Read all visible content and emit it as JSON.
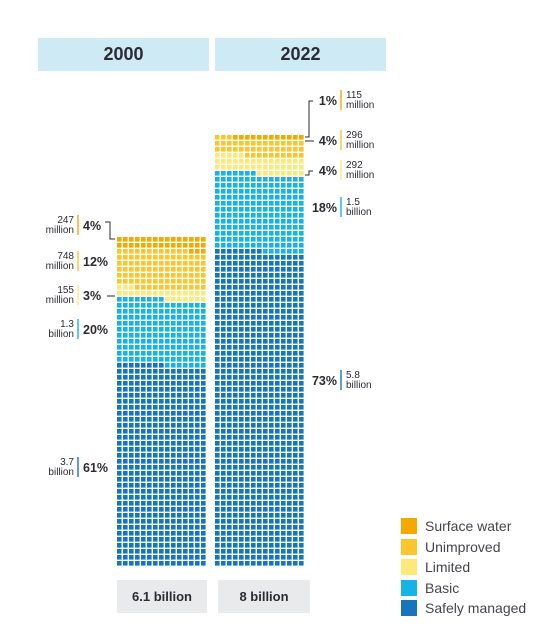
{
  "colors": {
    "surface_water": "#f5a800",
    "unimproved": "#fbc52e",
    "limited": "#fbe97a",
    "basic": "#16b3e4",
    "safely_managed": "#1775bd",
    "text": "#2b2b33"
  },
  "legend": [
    {
      "label": "Surface water",
      "color": "#f5a800"
    },
    {
      "label": "Unimproved",
      "color": "#fbc52e"
    },
    {
      "label": "Limited",
      "color": "#fbe97a"
    },
    {
      "label": "Basic",
      "color": "#16b3e4"
    },
    {
      "label": "Safely managed",
      "color": "#1775bd"
    }
  ],
  "chart_data": {
    "type": "bar",
    "categories": [
      "2000",
      "2022"
    ],
    "totals": [
      "6.1 billion",
      "8 billion"
    ],
    "series": [
      {
        "name": "Surface water",
        "percent": [
          4,
          1
        ],
        "amount": [
          "247 million",
          "115 million"
        ]
      },
      {
        "name": "Unimproved",
        "percent": [
          12,
          4
        ],
        "amount": [
          "748 million",
          "296 million"
        ]
      },
      {
        "name": "Limited",
        "percent": [
          3,
          4
        ],
        "amount": [
          "155 million",
          "292 million"
        ]
      },
      {
        "name": "Basic",
        "percent": [
          20,
          18
        ],
        "amount": [
          "1.3 billion",
          "1.5 billion"
        ]
      },
      {
        "name": "Safely managed",
        "percent": [
          61,
          73
        ],
        "amount": [
          "3.7 billion",
          "5.8 billion"
        ]
      }
    ],
    "amount_lines": [
      [
        [
          "247",
          "million"
        ],
        [
          "748",
          "million"
        ],
        [
          "155",
          "million"
        ],
        [
          "1.3",
          "billion"
        ],
        [
          "3.7",
          "billion"
        ]
      ],
      [
        [
          "115",
          "million"
        ],
        [
          "296",
          "million"
        ],
        [
          "292",
          "million"
        ],
        [
          "1.5",
          "billion"
        ],
        [
          "5.8",
          "billion"
        ]
      ]
    ],
    "legend_position": "bottom-right"
  }
}
